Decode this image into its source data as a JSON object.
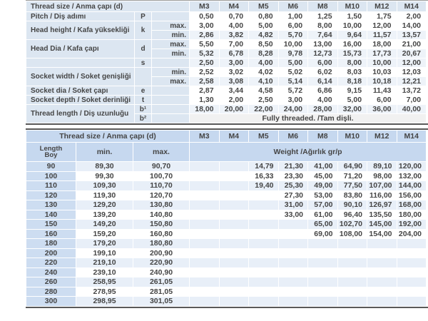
{
  "colors": {
    "label_blue": "#dce6f1",
    "header_blue": "#c6d8ef",
    "length_cell_blue": "#cdddf1",
    "row_stripe": "#eef3f9",
    "span_gray": "#f1f1f1",
    "table_border": "#595959",
    "text": "#454545"
  },
  "table1": {
    "header_label": "Thread size / Anma çapı (d)",
    "columns": [
      "M3",
      "M4",
      "M5",
      "M6",
      "M8",
      "M10",
      "M12",
      "M14"
    ],
    "rows": [
      {
        "label": {
          "text": "Pitch / Diş adımı",
          "rowspan": 1
        },
        "symbol": {
          "text": "P",
          "rowspan": 1
        },
        "sub": "",
        "values": [
          "0,50",
          "0,70",
          "0,80",
          "1,00",
          "1,25",
          "1,50",
          "1,75",
          "2,00"
        ]
      },
      {
        "label": {
          "text": "Head height / Kafa yüksekliği",
          "rowspan": 2
        },
        "symbol": {
          "text": "k",
          "rowspan": 2
        },
        "sub": "max.",
        "values": [
          "3,00",
          "4,00",
          "5,00",
          "6,00",
          "8,00",
          "10,00",
          "12,00",
          "14,00"
        ]
      },
      {
        "sub": "min.",
        "values": [
          "2,86",
          "3,82",
          "4,82",
          "5,70",
          "7,64",
          "9,64",
          "11,57",
          "13,57"
        ]
      },
      {
        "label": {
          "text": "Head Dia / Kafa çapı",
          "rowspan": 2
        },
        "symbol": {
          "text": "d",
          "rowspan": 2
        },
        "sub": "max.",
        "values": [
          "5,50",
          "7,00",
          "8,50",
          "10,00",
          "13,00",
          "16,00",
          "18,00",
          "21,00"
        ]
      },
      {
        "sub": "min.",
        "values": [
          "5,32",
          "6,78",
          "8,28",
          "9,78",
          "12,73",
          "15,73",
          "17,73",
          "20,67"
        ]
      },
      {
        "label": {
          "text": "",
          "rowspan": 1
        },
        "symbol": {
          "text": "s",
          "rowspan": 1
        },
        "sub": "",
        "values": [
          "2,50",
          "3,00",
          "4,00",
          "5,00",
          "6,00",
          "8,00",
          "10,00",
          "12,00"
        ]
      },
      {
        "label": {
          "text": "Socket width / Soket genişliği",
          "rowspan": 2
        },
        "symbol": {
          "text": "",
          "rowspan": 2
        },
        "sub": "min.",
        "values": [
          "2,52",
          "3,02",
          "4,02",
          "5,02",
          "6,02",
          "8,03",
          "10,03",
          "12,03"
        ]
      },
      {
        "sub": "max.",
        "values": [
          "2,58",
          "3,08",
          "4,10",
          "5,14",
          "6,14",
          "8,18",
          "10,18",
          "12,21"
        ]
      },
      {
        "label": {
          "text": "Socket dia / Soket çapı",
          "rowspan": 1
        },
        "symbol": {
          "text": "e",
          "rowspan": 1
        },
        "sub": "",
        "values": [
          "2,87",
          "3,44",
          "4,58",
          "5,72",
          "6,86",
          "9,15",
          "11,43",
          "13,72"
        ]
      },
      {
        "label": {
          "text": "Socket depth / Soket derinliği",
          "rowspan": 1
        },
        "symbol": {
          "text": "t",
          "rowspan": 1
        },
        "sub": "",
        "values": [
          "1,30",
          "2,00",
          "2,50",
          "3,00",
          "4,00",
          "5,00",
          "6,00",
          "7,00"
        ]
      },
      {
        "label": {
          "text": "Thread length / Diş uzunluğu",
          "rowspan": 2
        },
        "symbol": {
          "text": "b¹",
          "rowspan": 1
        },
        "sub": "",
        "values": [
          "18,00",
          "20,00",
          "22,00",
          "24,00",
          "28,00",
          "32,00",
          "36,00",
          "40,00"
        ]
      },
      {
        "symbol": {
          "text": "b²",
          "rowspan": 1
        },
        "sub": "",
        "span_text": "Fully threaded. /Tam dişli."
      }
    ]
  },
  "table2": {
    "header_label": "Thread size / Anma çapı (d)",
    "columns": [
      "M3",
      "M4",
      "M5",
      "M6",
      "M8",
      "M10",
      "M12",
      "M14"
    ],
    "subheader": {
      "length": "Length",
      "boy": "Boy",
      "min": "min.",
      "max": "max.",
      "weight": "Weight /Ağırlık gr/p"
    },
    "rows": [
      {
        "length": "90",
        "min": "89,30",
        "max": "90,70",
        "weights": [
          "",
          "",
          "14,79",
          "21,30",
          "41,00",
          "64,90",
          "89,10",
          "120,00"
        ]
      },
      {
        "length": "100",
        "min": "99,30",
        "max": "100,70",
        "weights": [
          "",
          "",
          "16,33",
          "23,30",
          "45,00",
          "71,20",
          "98,00",
          "132,00"
        ]
      },
      {
        "length": "110",
        "min": "109,30",
        "max": "110,70",
        "weights": [
          "",
          "",
          "19,40",
          "25,30",
          "49,00",
          "77,50",
          "107,00",
          "144,00"
        ]
      },
      {
        "length": "120",
        "min": "119,30",
        "max": "120,70",
        "weights": [
          "",
          "",
          "",
          "27,30",
          "53,00",
          "83,80",
          "116,00",
          "156,00"
        ]
      },
      {
        "length": "130",
        "min": "129,20",
        "max": "130,80",
        "weights": [
          "",
          "",
          "",
          "31,00",
          "57,00",
          "90,10",
          "126,97",
          "168,00"
        ]
      },
      {
        "length": "140",
        "min": "139,20",
        "max": "140,80",
        "weights": [
          "",
          "",
          "",
          "33,00",
          "61,00",
          "96,40",
          "135,50",
          "180,00"
        ]
      },
      {
        "length": "150",
        "min": "149,20",
        "max": "150,80",
        "weights": [
          "",
          "",
          "",
          "",
          "65,00",
          "102,70",
          "145,00",
          "192,00"
        ]
      },
      {
        "length": "160",
        "min": "159,20",
        "max": "160,80",
        "weights": [
          "",
          "",
          "",
          "",
          "69,00",
          "108,00",
          "154,00",
          "204,00"
        ]
      },
      {
        "length": "180",
        "min": "179,20",
        "max": "180,80",
        "weights": [
          "",
          "",
          "",
          "",
          "",
          "",
          "",
          ""
        ]
      },
      {
        "length": "200",
        "min": "199,10",
        "max": "200,90",
        "weights": [
          "",
          "",
          "",
          "",
          "",
          "",
          "",
          ""
        ]
      },
      {
        "length": "220",
        "min": "219,10",
        "max": "220,90",
        "weights": [
          "",
          "",
          "",
          "",
          "",
          "",
          "",
          ""
        ]
      },
      {
        "length": "240",
        "min": "239,10",
        "max": "240,90",
        "weights": [
          "",
          "",
          "",
          "",
          "",
          "",
          "",
          ""
        ]
      },
      {
        "length": "260",
        "min": "258,95",
        "max": "261,05",
        "weights": [
          "",
          "",
          "",
          "",
          "",
          "",
          "",
          ""
        ]
      },
      {
        "length": "280",
        "min": "278,95",
        "max": "281,05",
        "weights": [
          "",
          "",
          "",
          "",
          "",
          "",
          "",
          ""
        ]
      },
      {
        "length": "300",
        "min": "298,95",
        "max": "301,05",
        "weights": [
          "",
          "",
          "",
          "",
          "",
          "",
          "",
          ""
        ]
      }
    ]
  }
}
